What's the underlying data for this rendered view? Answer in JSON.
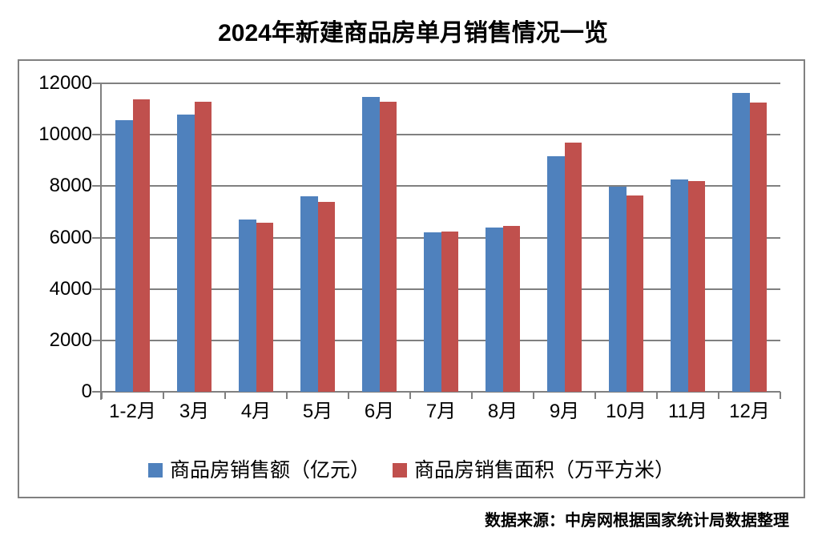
{
  "title": "2024年新建商品房单月销售情况一览",
  "footer": "数据来源：中房网根据国家统计局数据整理",
  "colors": {
    "series_amount": "#4F81BD",
    "series_area": "#C0504D",
    "grid": "#808080",
    "border": "#808080",
    "text": "#000000",
    "background": "#FFFFFF"
  },
  "chart_data": {
    "type": "bar",
    "title": "2024年新建商品房单月销售情况一览",
    "categories": [
      "1-2月",
      "3月",
      "4月",
      "5月",
      "6月",
      "7月",
      "8月",
      "9月",
      "10月",
      "11月",
      "12月"
    ],
    "series": [
      {
        "name": "商品房销售额（亿元）",
        "color": "#4F81BD",
        "values": [
          10566,
          10789,
          6712,
          7598,
          11468,
          6197,
          6393,
          9157,
          7975,
          8270,
          11625
        ]
      },
      {
        "name": "商品房销售面积（万平方米）",
        "color": "#C0504D",
        "values": [
          11369,
          11299,
          6584,
          7390,
          11274,
          6233,
          6453,
          9682,
          7646,
          8188,
          11267
        ]
      }
    ],
    "xlabel": "",
    "ylabel": "",
    "ylim": [
      0,
      12000
    ],
    "ytick_step": 2000,
    "grid": true,
    "legend_position": "bottom",
    "source_note": "数据来源：中房网根据国家统计局数据整理"
  }
}
